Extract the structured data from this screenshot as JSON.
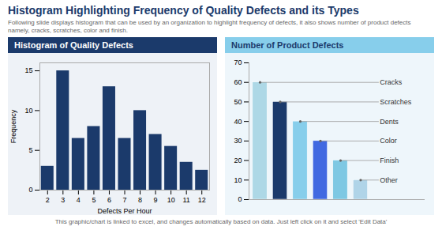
{
  "title": "Histogram Highlighting Frequency of Quality Defects and its Types",
  "subtitle": "Following slide displays histogram that can be used by an organization to highlight frequency of defects, it also shows number of product defects namely, cracks, scratches, color and finish.",
  "caption": "This graphic/chart is linked to excel, and changes automatically based on data. Just left click on it and select 'Edit Data'",
  "chart_data": [
    {
      "type": "bar",
      "title": "Histogram of Quality Defects",
      "x": [
        2,
        3,
        4,
        5,
        6,
        7,
        8,
        9,
        10,
        11,
        12
      ],
      "values": [
        3,
        15,
        6.5,
        8,
        13,
        6.5,
        10,
        7,
        5.5,
        3.5,
        2.5
      ],
      "color": "#1B3A6B",
      "xlabel": "Defects Per Hour",
      "ylabel": "Frequency",
      "xlim": [
        1.5,
        12.5
      ],
      "xticks": [
        2,
        3,
        4,
        5,
        6,
        7,
        8,
        9,
        10,
        11,
        12
      ],
      "ylim": [
        0,
        16
      ],
      "yticks": [
        0,
        5,
        10,
        15
      ],
      "grid": false
    },
    {
      "type": "bar",
      "title": "Number of Product Defects",
      "categories": [
        "Cracks",
        "Scratches",
        "Dents",
        "Color",
        "Finish",
        "Other"
      ],
      "values": [
        60,
        50,
        40,
        30,
        20,
        10
      ],
      "colors": [
        "#ADD8E6",
        "#1B3A6B",
        "#87CEEB",
        "#4169E1",
        "#7EC8E3",
        "#B0D4E8"
      ],
      "ylim": [
        0,
        70
      ],
      "yticks": [
        0,
        10,
        20,
        30,
        40,
        50,
        60,
        70
      ],
      "tick_labels": "y",
      "grid": false
    }
  ]
}
